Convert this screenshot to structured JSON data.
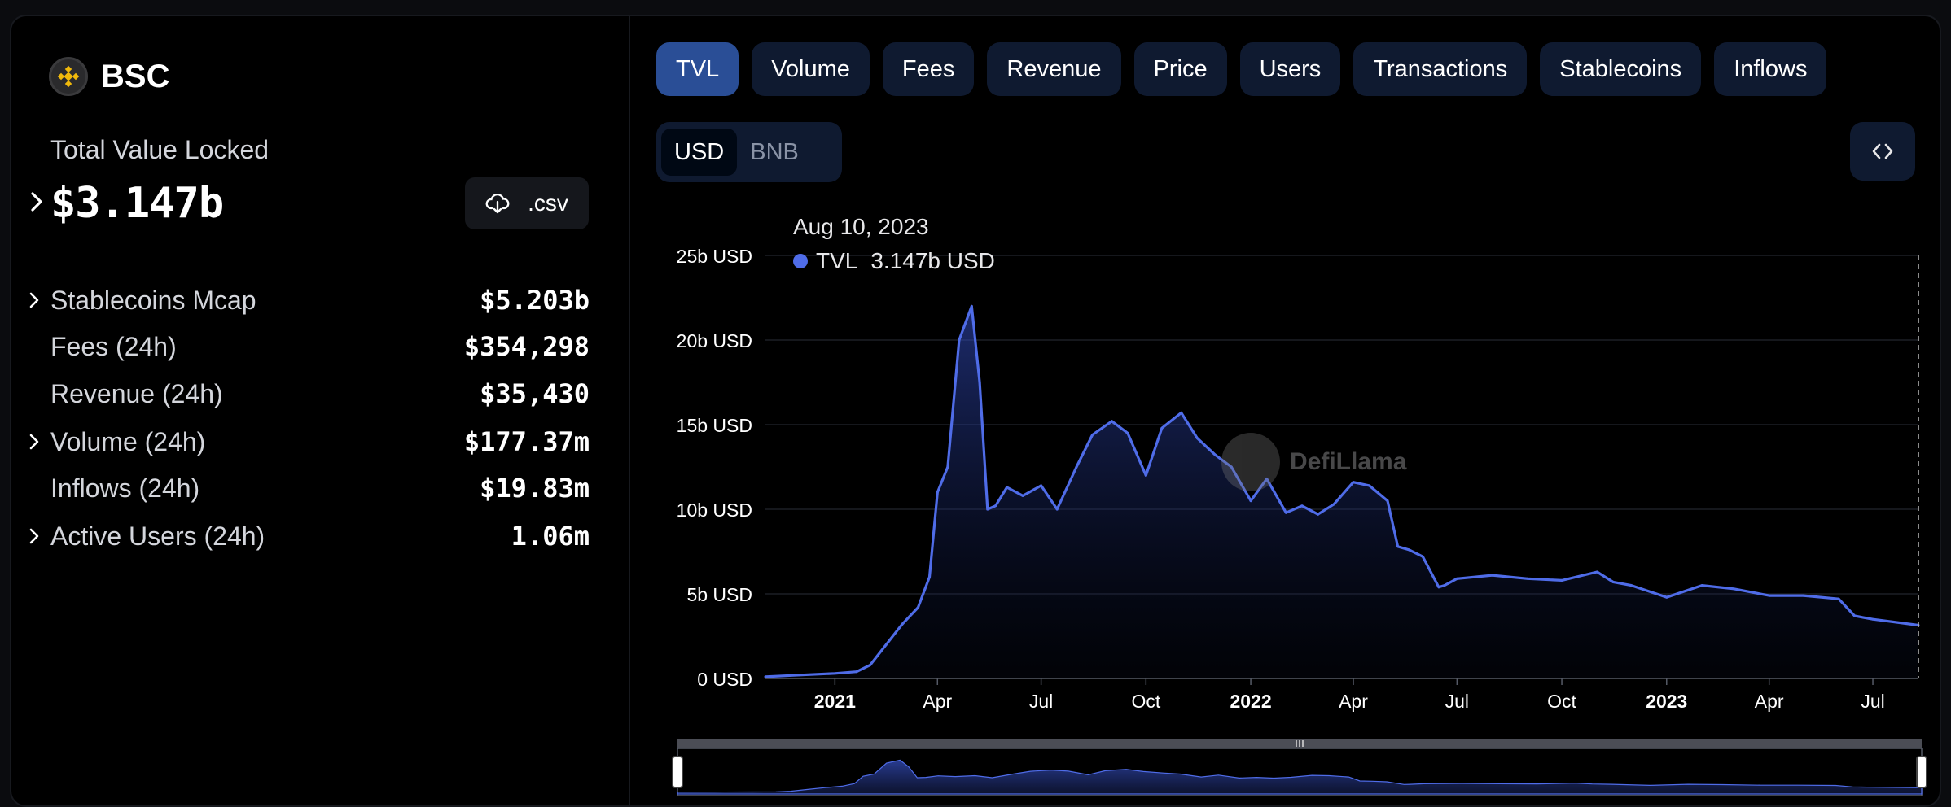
{
  "chain": {
    "name": "BSC",
    "logo_icon": "bnb-logo-icon"
  },
  "tvl": {
    "label": "Total Value Locked",
    "value": "$3.147b"
  },
  "csv_button": {
    "label": ".csv",
    "icon": "download-cloud-icon"
  },
  "stats": [
    {
      "label": "Stablecoins Mcap",
      "value": "$5.203b",
      "expandable": true
    },
    {
      "label": "Fees (24h)",
      "value": "$354,298",
      "expandable": false
    },
    {
      "label": "Revenue (24h)",
      "value": "$35,430",
      "expandable": false
    },
    {
      "label": "Volume (24h)",
      "value": "$177.37m",
      "expandable": true
    },
    {
      "label": "Inflows (24h)",
      "value": "$19.83m",
      "expandable": false
    },
    {
      "label": "Active Users (24h)",
      "value": "1.06m",
      "expandable": true
    }
  ],
  "tabs": [
    {
      "label": "TVL",
      "active": true
    },
    {
      "label": "Volume"
    },
    {
      "label": "Fees"
    },
    {
      "label": "Revenue"
    },
    {
      "label": "Price"
    },
    {
      "label": "Users"
    },
    {
      "label": "Transactions"
    },
    {
      "label": "Stablecoins"
    },
    {
      "label": "Inflows"
    }
  ],
  "unit_toggle": {
    "options": [
      "USD",
      "BNB"
    ],
    "selected": "USD"
  },
  "embed_button": {
    "icon": "code-brackets-icon"
  },
  "tooltip": {
    "date": "Aug 10, 2023",
    "series": "TVL",
    "value": "3.147b USD",
    "color": "#4f6ce8"
  },
  "watermark": {
    "text": "DefiLlama"
  },
  "colors": {
    "accent": "#4f6ce8",
    "tab_active": "#2a4e96",
    "tab_bg": "#0f1a30"
  },
  "chart_data": {
    "type": "area",
    "series": [
      {
        "name": "TVL",
        "x": [
          "2020-11-01",
          "2020-12-01",
          "2021-01-01",
          "2021-01-20",
          "2021-02-01",
          "2021-02-15",
          "2021-03-01",
          "2021-03-15",
          "2021-03-25",
          "2021-04-01",
          "2021-04-10",
          "2021-04-20",
          "2021-05-01",
          "2021-05-08",
          "2021-05-15",
          "2021-05-22",
          "2021-06-01",
          "2021-06-15",
          "2021-07-01",
          "2021-07-15",
          "2021-08-01",
          "2021-08-15",
          "2021-09-01",
          "2021-09-15",
          "2021-10-01",
          "2021-10-15",
          "2021-11-01",
          "2021-11-15",
          "2021-12-01",
          "2021-12-15",
          "2022-01-01",
          "2022-01-15",
          "2022-02-01",
          "2022-02-15",
          "2022-03-01",
          "2022-03-15",
          "2022-04-01",
          "2022-04-15",
          "2022-05-01",
          "2022-05-10",
          "2022-05-20",
          "2022-06-01",
          "2022-06-15",
          "2022-06-20",
          "2022-07-01",
          "2022-08-01",
          "2022-09-01",
          "2022-10-01",
          "2022-11-01",
          "2022-11-15",
          "2022-12-01",
          "2023-01-01",
          "2023-02-01",
          "2023-03-01",
          "2023-04-01",
          "2023-05-01",
          "2023-06-01",
          "2023-06-15",
          "2023-07-01",
          "2023-08-10"
        ],
        "values": [
          0.1,
          0.2,
          0.3,
          0.4,
          0.8,
          2.0,
          3.2,
          4.2,
          6.0,
          11.0,
          12.5,
          20.0,
          22.0,
          17.5,
          10.0,
          10.2,
          11.3,
          10.8,
          11.4,
          10.0,
          12.5,
          14.4,
          15.2,
          14.5,
          12.0,
          14.8,
          15.7,
          14.2,
          13.2,
          12.5,
          10.5,
          11.8,
          9.8,
          10.2,
          9.7,
          10.3,
          11.6,
          11.4,
          10.5,
          7.8,
          7.6,
          7.2,
          5.4,
          5.5,
          5.9,
          6.1,
          5.9,
          5.8,
          6.3,
          5.7,
          5.5,
          4.8,
          5.5,
          5.3,
          4.9,
          4.9,
          4.7,
          3.7,
          3.5,
          3.147
        ]
      }
    ],
    "y_tick_labels": [
      "0 USD",
      "5b USD",
      "10b USD",
      "15b USD",
      "20b USD",
      "25b USD"
    ],
    "x_tick_labels": [
      {
        "date": "2021-01-01",
        "label": "2021",
        "bold": true
      },
      {
        "date": "2021-04-01",
        "label": "Apr"
      },
      {
        "date": "2021-07-01",
        "label": "Jul"
      },
      {
        "date": "2021-10-01",
        "label": "Oct"
      },
      {
        "date": "2022-01-01",
        "label": "2022",
        "bold": true
      },
      {
        "date": "2022-04-01",
        "label": "Apr"
      },
      {
        "date": "2022-07-01",
        "label": "Jul"
      },
      {
        "date": "2022-10-01",
        "label": "Oct"
      },
      {
        "date": "2023-01-01",
        "label": "2023",
        "bold": true
      },
      {
        "date": "2023-04-01",
        "label": "Apr"
      },
      {
        "date": "2023-07-01",
        "label": "Jul"
      }
    ],
    "unit": "b USD",
    "ylim": [
      0,
      25
    ],
    "xlim": [
      "2020-11-01",
      "2023-08-10"
    ],
    "grid": true,
    "legend": "tooltip top-left"
  }
}
